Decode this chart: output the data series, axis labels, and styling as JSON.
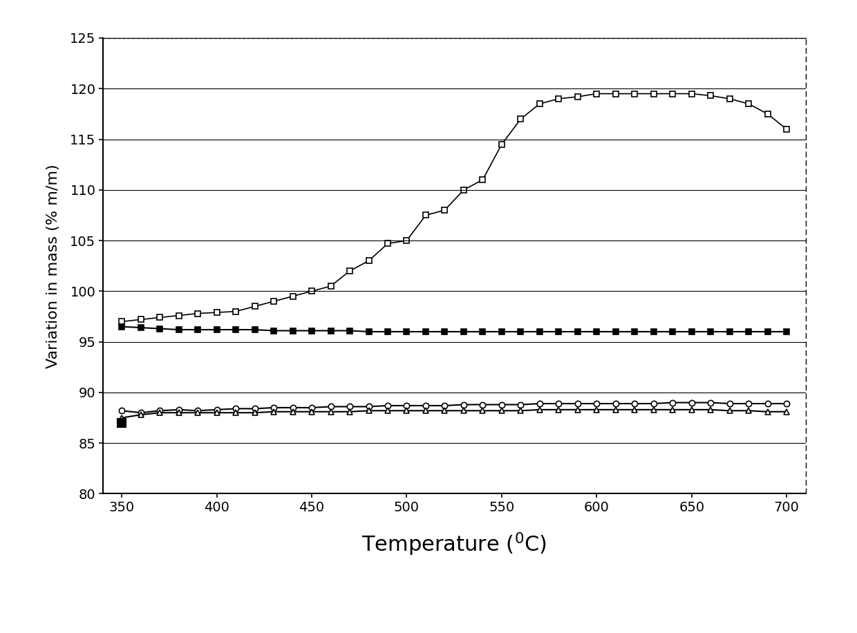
{
  "title": "",
  "xlabel": "Temperature (°C)",
  "ylabel": "Variation in mass (% m/m)",
  "xlim": [
    340,
    710
  ],
  "ylim": [
    80,
    125
  ],
  "xticks": [
    350,
    400,
    450,
    500,
    550,
    600,
    650,
    700
  ],
  "yticks": [
    80,
    85,
    90,
    95,
    100,
    105,
    110,
    115,
    120,
    125
  ],
  "series1_x": [
    350,
    360,
    370,
    380,
    390,
    400,
    410,
    420,
    430,
    440,
    450,
    460,
    470,
    480,
    490,
    500,
    510,
    520,
    530,
    540,
    550,
    560,
    570,
    580,
    590,
    600,
    610,
    620,
    630,
    640,
    650,
    660,
    670,
    680,
    690,
    700
  ],
  "series1_y": [
    97.0,
    97.2,
    97.4,
    97.6,
    97.8,
    97.9,
    98.0,
    98.5,
    99.0,
    99.5,
    100.0,
    100.5,
    102.0,
    103.0,
    104.7,
    105.0,
    107.5,
    108.0,
    110.0,
    111.0,
    114.5,
    117.0,
    118.5,
    119.0,
    119.2,
    119.5,
    119.5,
    119.5,
    119.5,
    119.5,
    119.5,
    119.3,
    119.0,
    118.5,
    117.5,
    116.0
  ],
  "series2_x": [
    350,
    360,
    370,
    380,
    390,
    400,
    410,
    420,
    430,
    440,
    450,
    460,
    470,
    480,
    490,
    500,
    510,
    520,
    530,
    540,
    550,
    560,
    570,
    580,
    590,
    600,
    610,
    620,
    630,
    640,
    650,
    660,
    670,
    680,
    690,
    700
  ],
  "series2_y": [
    96.5,
    96.4,
    96.3,
    96.2,
    96.2,
    96.2,
    96.2,
    96.2,
    96.1,
    96.1,
    96.1,
    96.1,
    96.1,
    96.0,
    96.0,
    96.0,
    96.0,
    96.0,
    96.0,
    96.0,
    96.0,
    96.0,
    96.0,
    96.0,
    96.0,
    96.0,
    96.0,
    96.0,
    96.0,
    96.0,
    96.0,
    96.0,
    96.0,
    96.0,
    96.0,
    96.0
  ],
  "series3_x": [
    350,
    360,
    370,
    380,
    390,
    400,
    410,
    420,
    430,
    440,
    450,
    460,
    470,
    480,
    490,
    500,
    510,
    520,
    530,
    540,
    550,
    560,
    570,
    580,
    590,
    600,
    610,
    620,
    630,
    640,
    650,
    660,
    670,
    680,
    690,
    700
  ],
  "series3_y": [
    88.2,
    88.0,
    88.2,
    88.3,
    88.2,
    88.3,
    88.4,
    88.4,
    88.5,
    88.5,
    88.5,
    88.6,
    88.6,
    88.6,
    88.7,
    88.7,
    88.7,
    88.7,
    88.8,
    88.8,
    88.8,
    88.8,
    88.9,
    88.9,
    88.9,
    88.9,
    88.9,
    88.9,
    88.9,
    89.0,
    89.0,
    89.0,
    88.9,
    88.9,
    88.9,
    88.9
  ],
  "series4_x": [
    350,
    360,
    370,
    380,
    390,
    400,
    410,
    420,
    430,
    440,
    450,
    460,
    470,
    480,
    490,
    500,
    510,
    520,
    530,
    540,
    550,
    560,
    570,
    580,
    590,
    600,
    610,
    620,
    630,
    640,
    650,
    660,
    670,
    680,
    690,
    700
  ],
  "series4_y": [
    87.5,
    87.8,
    88.0,
    88.0,
    88.0,
    88.0,
    88.0,
    88.0,
    88.1,
    88.1,
    88.1,
    88.1,
    88.1,
    88.2,
    88.2,
    88.2,
    88.2,
    88.2,
    88.2,
    88.2,
    88.2,
    88.2,
    88.3,
    88.3,
    88.3,
    88.3,
    88.3,
    88.3,
    88.3,
    88.3,
    88.3,
    88.3,
    88.2,
    88.2,
    88.1,
    88.1
  ],
  "series5_x": [
    350
  ],
  "series5_y": [
    87.0
  ],
  "bg_color": "#ffffff",
  "line_color": "#000000",
  "grid_color": "#000000",
  "xlabel_fontsize": 22,
  "ylabel_fontsize": 16,
  "tick_fontsize": 14
}
